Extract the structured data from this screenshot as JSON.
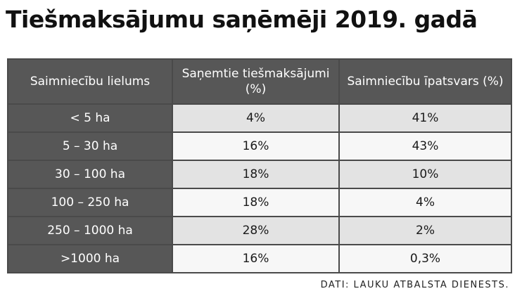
{
  "chart_data": {
    "type": "table",
    "title": "Tiešmaksājumu saņēmēji 2019. gadā",
    "columns": [
      "Saimniecību lielums",
      "Saņemtie tiešmaksājumi (%)",
      "Saimniecību īpatsvars  (%)"
    ],
    "rows": [
      [
        "< 5 ha",
        "4%",
        "41%"
      ],
      [
        "5 – 30 ha",
        "16%",
        "43%"
      ],
      [
        "30 – 100 ha",
        "18%",
        "10%"
      ],
      [
        "100 – 250 ha",
        "18%",
        "4%"
      ],
      [
        "250 – 1000 ha",
        "28%",
        "2%"
      ],
      [
        ">1000 ha",
        "16%",
        "0,3%"
      ]
    ],
    "source": "DATI: LAUKU ATBALSTA DIENESTS."
  }
}
